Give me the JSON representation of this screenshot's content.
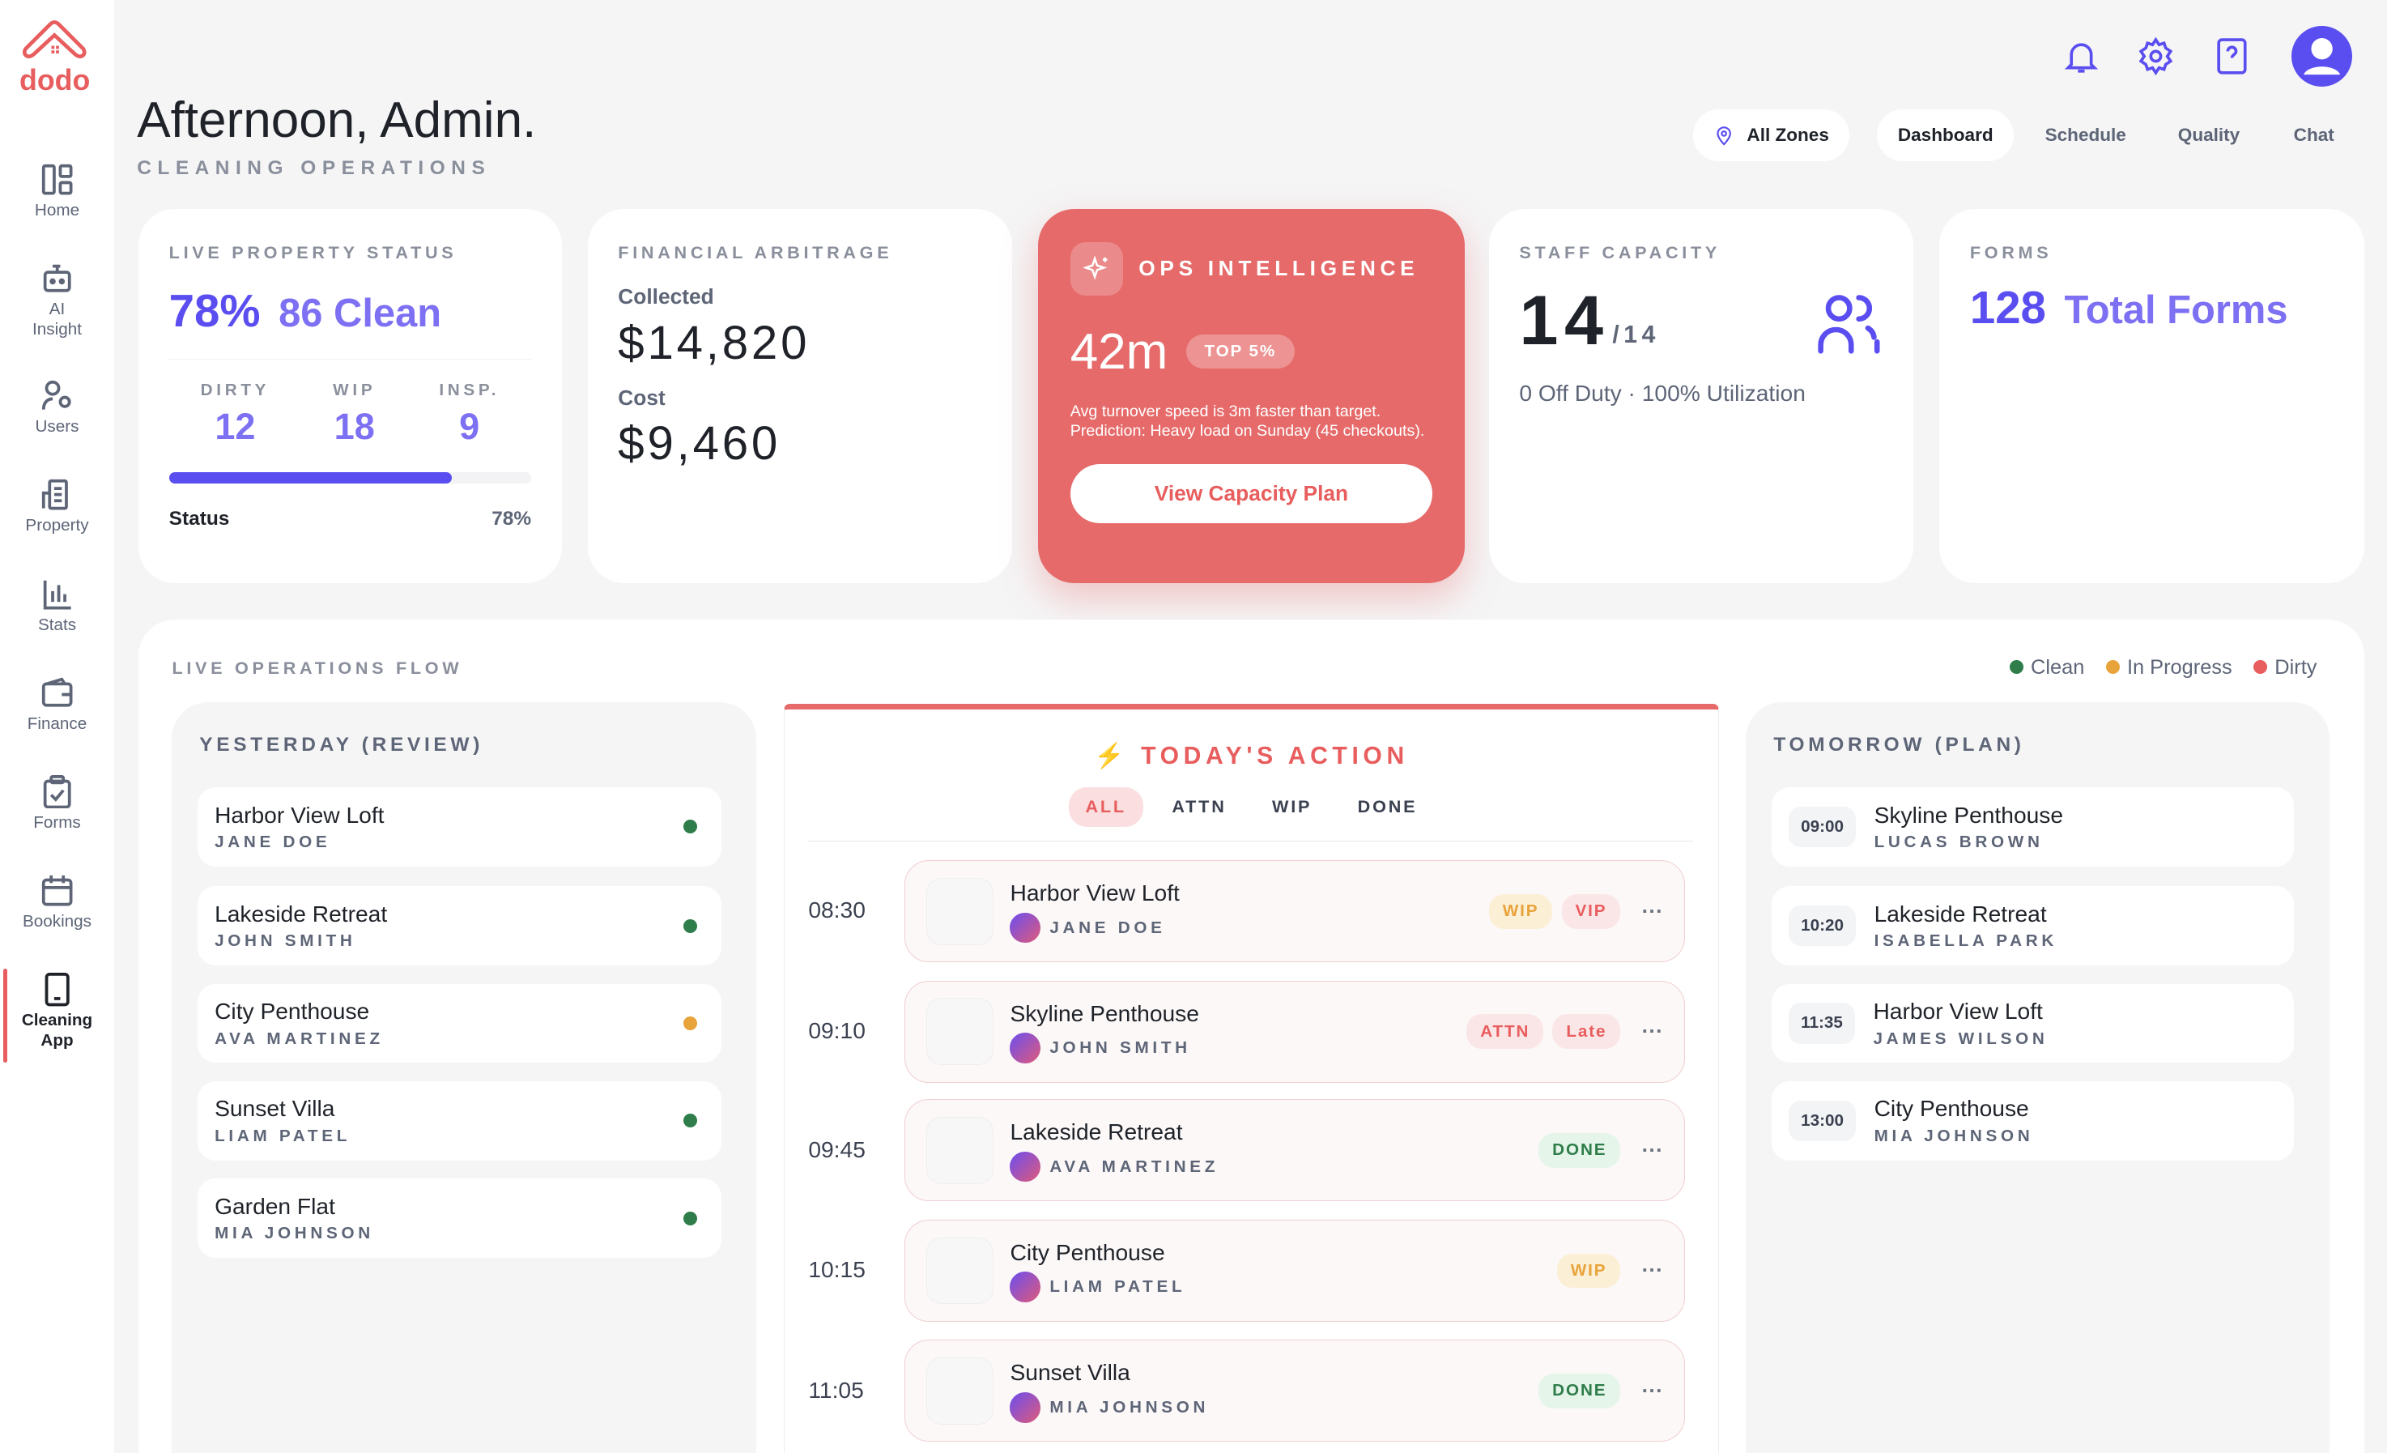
{
  "brand": {
    "name": "dodo",
    "color": "#e85d5d"
  },
  "sidebar": {
    "items": [
      {
        "label": "Home",
        "icon": "layout-icon"
      },
      {
        "label": "AI Insight",
        "icon": "robot-icon"
      },
      {
        "label": "Users",
        "icon": "user-gear-icon"
      },
      {
        "label": "Property",
        "icon": "building-icon"
      },
      {
        "label": "Stats",
        "icon": "bar-chart-icon"
      },
      {
        "label": "Finance",
        "icon": "wallet-icon"
      },
      {
        "label": "Forms",
        "icon": "clipboard-icon"
      },
      {
        "label": "Bookings",
        "icon": "calendar-icon"
      },
      {
        "label": "Cleaning App",
        "icon": "phone-icon",
        "active": true
      }
    ]
  },
  "header": {
    "title": "Afternoon, Admin.",
    "subtitle": "CLEANING OPERATIONS",
    "zone": "All Zones",
    "tabs": [
      {
        "label": "Dashboard",
        "active": true
      },
      {
        "label": "Schedule"
      },
      {
        "label": "Quality"
      },
      {
        "label": "Chat"
      }
    ]
  },
  "cards": {
    "property": {
      "label": "LIVE PROPERTY STATUS",
      "pct": "78%",
      "clean": "86 Clean",
      "stats": [
        {
          "label": "DIRTY",
          "value": "12"
        },
        {
          "label": "WIP",
          "value": "18"
        },
        {
          "label": "INSP.",
          "value": "9"
        }
      ],
      "progress": 78,
      "status_label": "Status",
      "status_value": "78%"
    },
    "financial": {
      "label": "FINANCIAL ARBITRAGE",
      "collected_label": "Collected",
      "collected": "$14,820",
      "cost_label": "Cost",
      "cost": "$9,460"
    },
    "ops": {
      "label": "OPS INTELLIGENCE",
      "value": "42m",
      "badge": "TOP 5%",
      "text": "Avg turnover speed is 3m faster than target. Prediction: Heavy load on Sunday (45 checkouts).",
      "button": "View Capacity Plan"
    },
    "staff": {
      "label": "STAFF CAPACITY",
      "value": "14",
      "total": "/14",
      "detail": "0 Off Duty · 100% Utilization"
    },
    "forms": {
      "label": "FORMS",
      "value": "128",
      "text": "Total Forms"
    }
  },
  "flow": {
    "title": "LIVE OPERATIONS FLOW",
    "legend": [
      {
        "label": "Clean",
        "color": "#2e7d4a"
      },
      {
        "label": "In Progress",
        "color": "#e8a33a"
      },
      {
        "label": "Dirty",
        "color": "#e85d5d"
      }
    ],
    "yesterday": {
      "title": "YESTERDAY (REVIEW)",
      "rows": [
        {
          "name": "Harbor View Loft",
          "who": "JANE DOE",
          "color": "#2e7d4a"
        },
        {
          "name": "Lakeside Retreat",
          "who": "JOHN SMITH",
          "color": "#2e7d4a"
        },
        {
          "name": "City Penthouse",
          "who": "AVA MARTINEZ",
          "color": "#e8a33a"
        },
        {
          "name": "Sunset Villa",
          "who": "LIAM PATEL",
          "color": "#2e7d4a"
        },
        {
          "name": "Garden Flat",
          "who": "MIA JOHNSON",
          "color": "#2e7d4a"
        }
      ]
    },
    "today": {
      "title": "TODAY'S ACTION",
      "filters": [
        "ALL",
        "ATTN",
        "WIP",
        "DONE"
      ],
      "rows": [
        {
          "time": "08:30",
          "name": "Harbor View Loft",
          "who": "JANE DOE",
          "badges": [
            "WIP",
            "VIP"
          ]
        },
        {
          "time": "09:10",
          "name": "Skyline Penthouse",
          "who": "JOHN SMITH",
          "badges": [
            "ATTN",
            "Late"
          ]
        },
        {
          "time": "09:45",
          "name": "Lakeside Retreat",
          "who": "AVA MARTINEZ",
          "badges": [
            "DONE"
          ]
        },
        {
          "time": "10:15",
          "name": "City Penthouse",
          "who": "LIAM PATEL",
          "badges": [
            "WIP"
          ]
        },
        {
          "time": "11:05",
          "name": "Sunset Villa",
          "who": "MIA JOHNSON",
          "badges": [
            "DONE"
          ]
        }
      ]
    },
    "tomorrow": {
      "title": "TOMORROW (PLAN)",
      "rows": [
        {
          "time": "09:00",
          "name": "Skyline Penthouse",
          "who": "LUCAS BROWN"
        },
        {
          "time": "10:20",
          "name": "Lakeside Retreat",
          "who": "ISABELLA PARK"
        },
        {
          "time": "11:35",
          "name": "Harbor View Loft",
          "who": "JAMES WILSON"
        },
        {
          "time": "13:00",
          "name": "City Penthouse",
          "who": "MIA JOHNSON"
        }
      ]
    }
  }
}
